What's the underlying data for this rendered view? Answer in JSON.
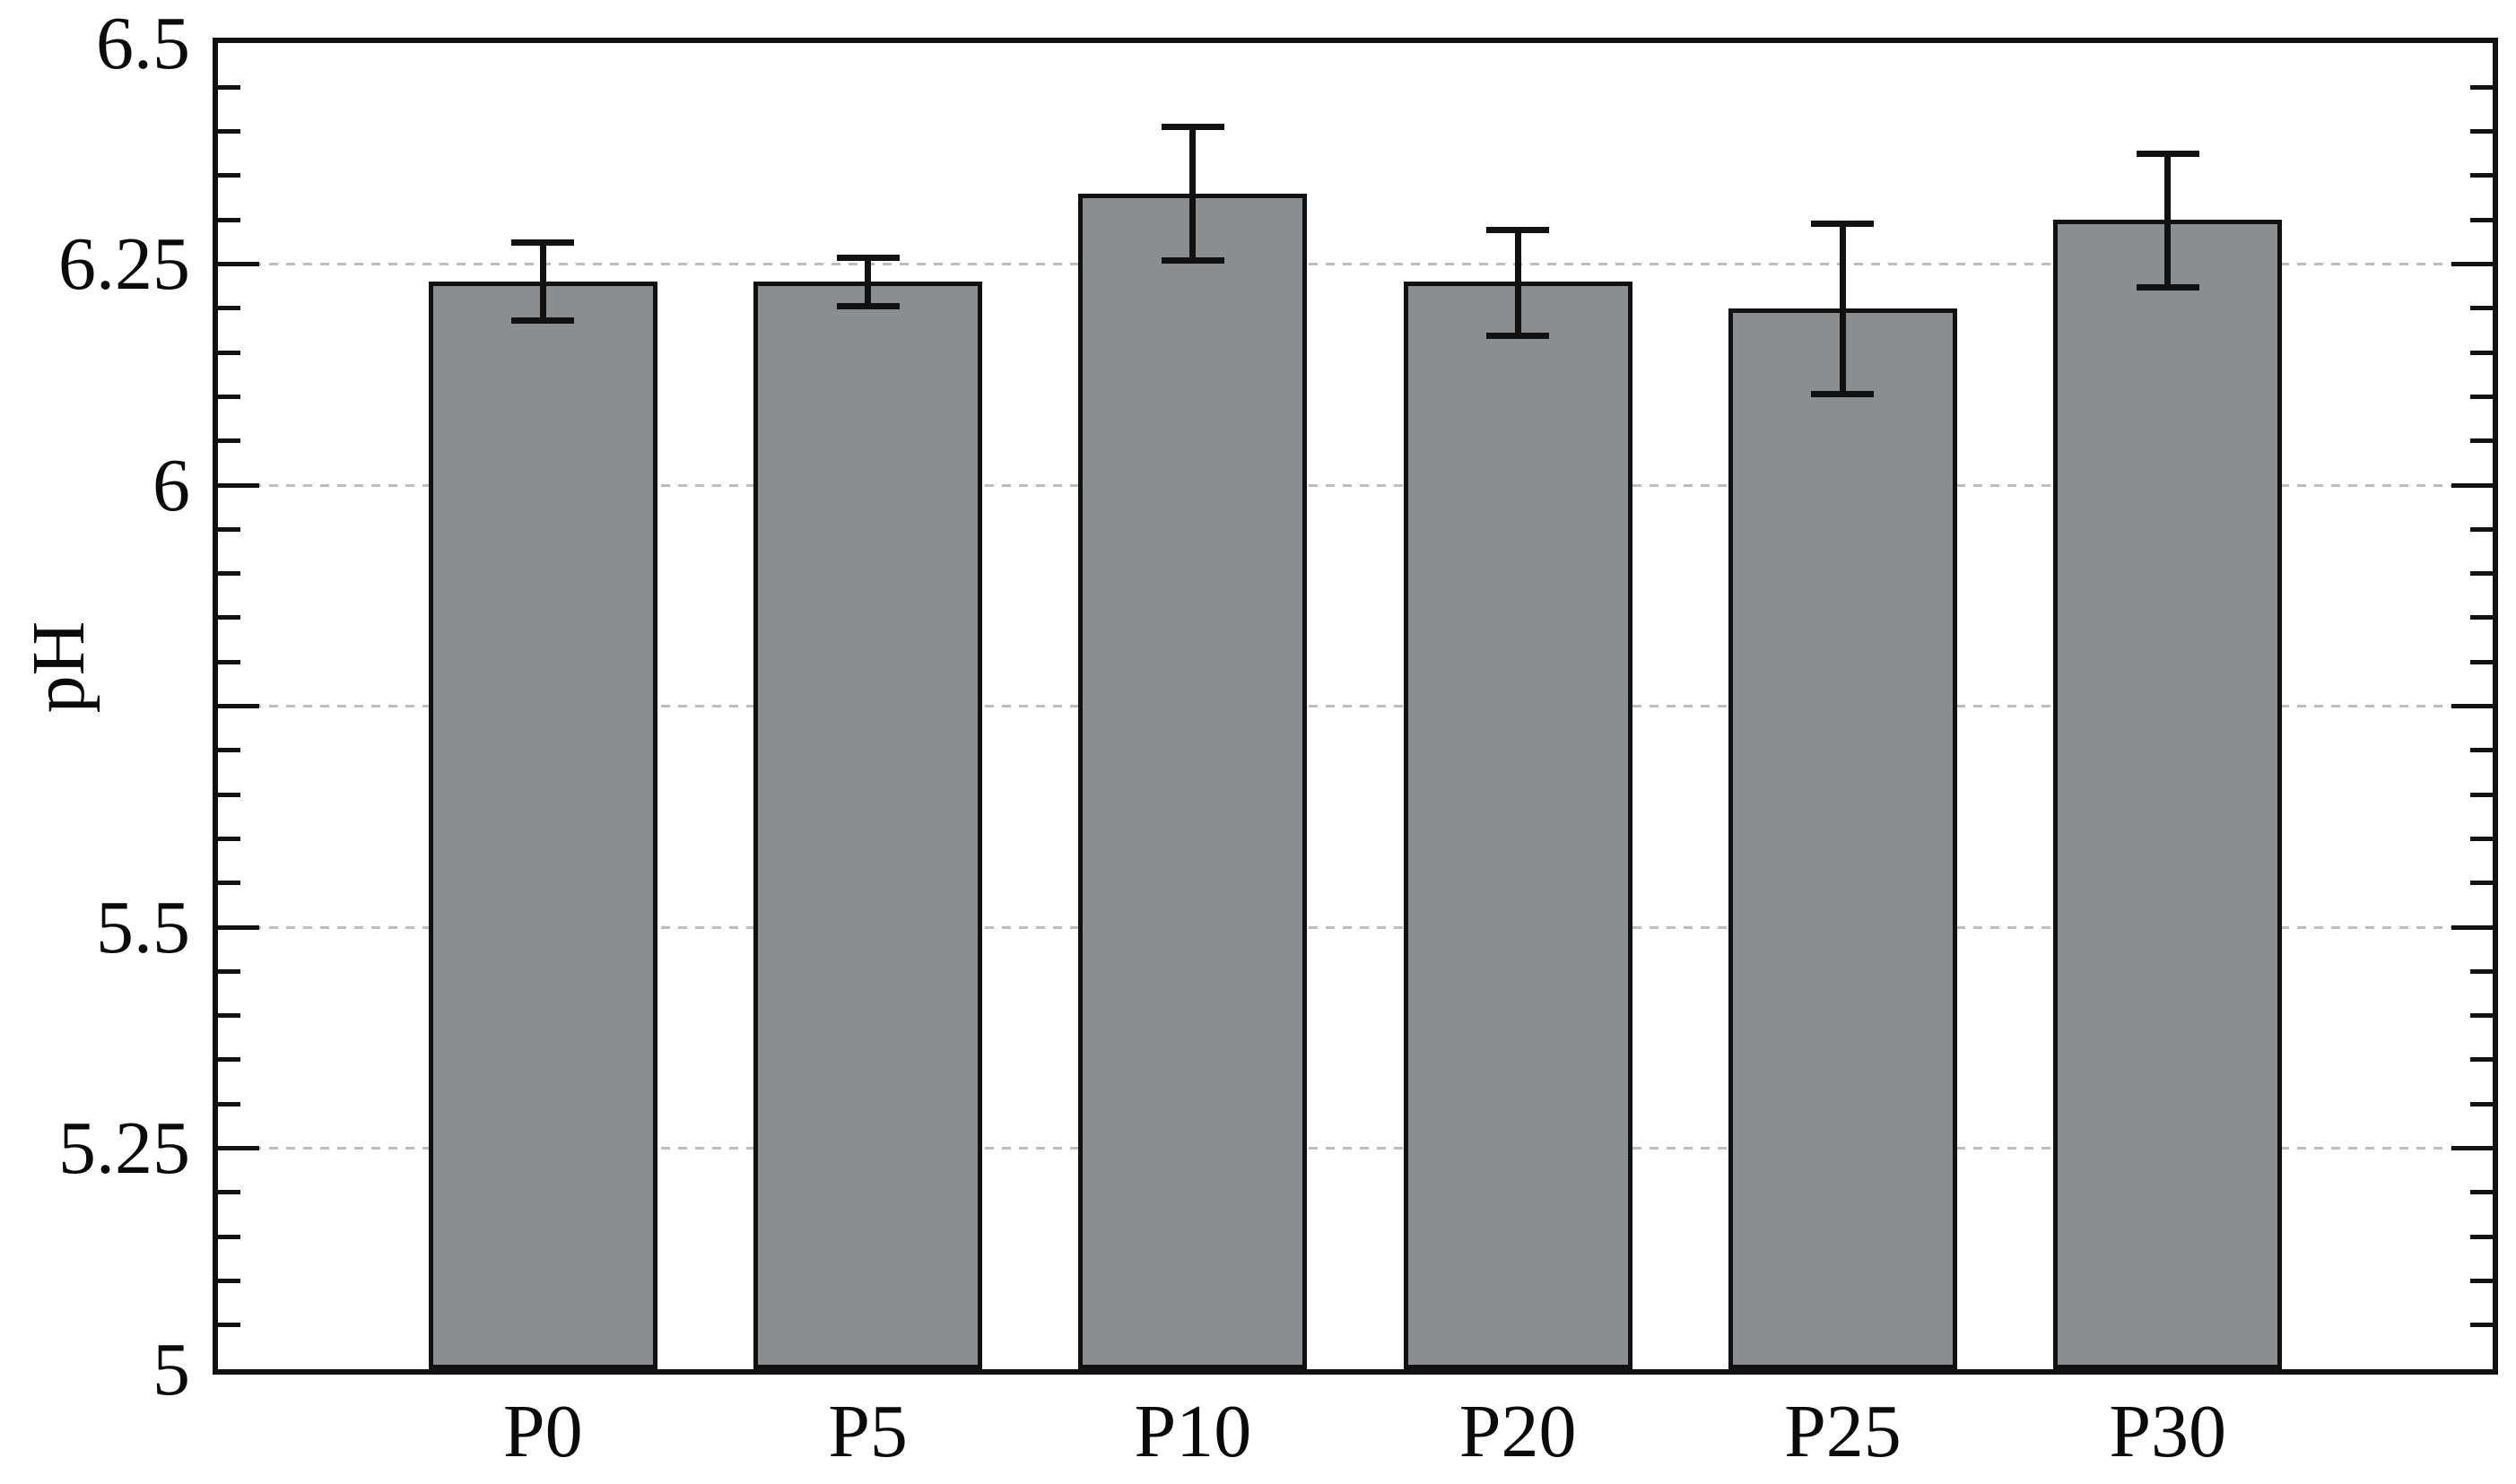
{
  "chart_data": {
    "type": "bar",
    "title": "",
    "xlabel": "",
    "ylabel": "pH",
    "categories": [
      "P0",
      "P5",
      "P10",
      "P20",
      "P25",
      "P30"
    ],
    "values": [
      6.23,
      6.23,
      6.33,
      6.23,
      6.2,
      6.3
    ],
    "error_low": [
      6.186,
      6.202,
      6.254,
      6.169,
      6.103,
      6.224
    ],
    "error_high": [
      6.274,
      6.257,
      6.405,
      6.289,
      6.296,
      6.375
    ],
    "ylim": [
      5,
      6.5
    ],
    "ytick_labels": [
      "6.5",
      "6.25",
      "6",
      "5.5",
      "5.25",
      "5"
    ],
    "ytick_values": [
      6.5,
      6.25,
      6,
      5.5,
      5.25,
      5
    ],
    "grid_values": [
      6.25,
      6.0,
      5.75,
      5.5,
      5.25
    ],
    "major_tick_step": 0.25,
    "minor_tick_step": 0.05,
    "grid_on": true,
    "grid_style": "dashed",
    "legend": "none",
    "style": {
      "bar_fill": "#8a8e91",
      "bar_border": "#111111",
      "axis_color": "#111111",
      "grid_color": "#bdbdbd",
      "text_color": "#0a0a0a",
      "background": "#ffffff"
    }
  }
}
